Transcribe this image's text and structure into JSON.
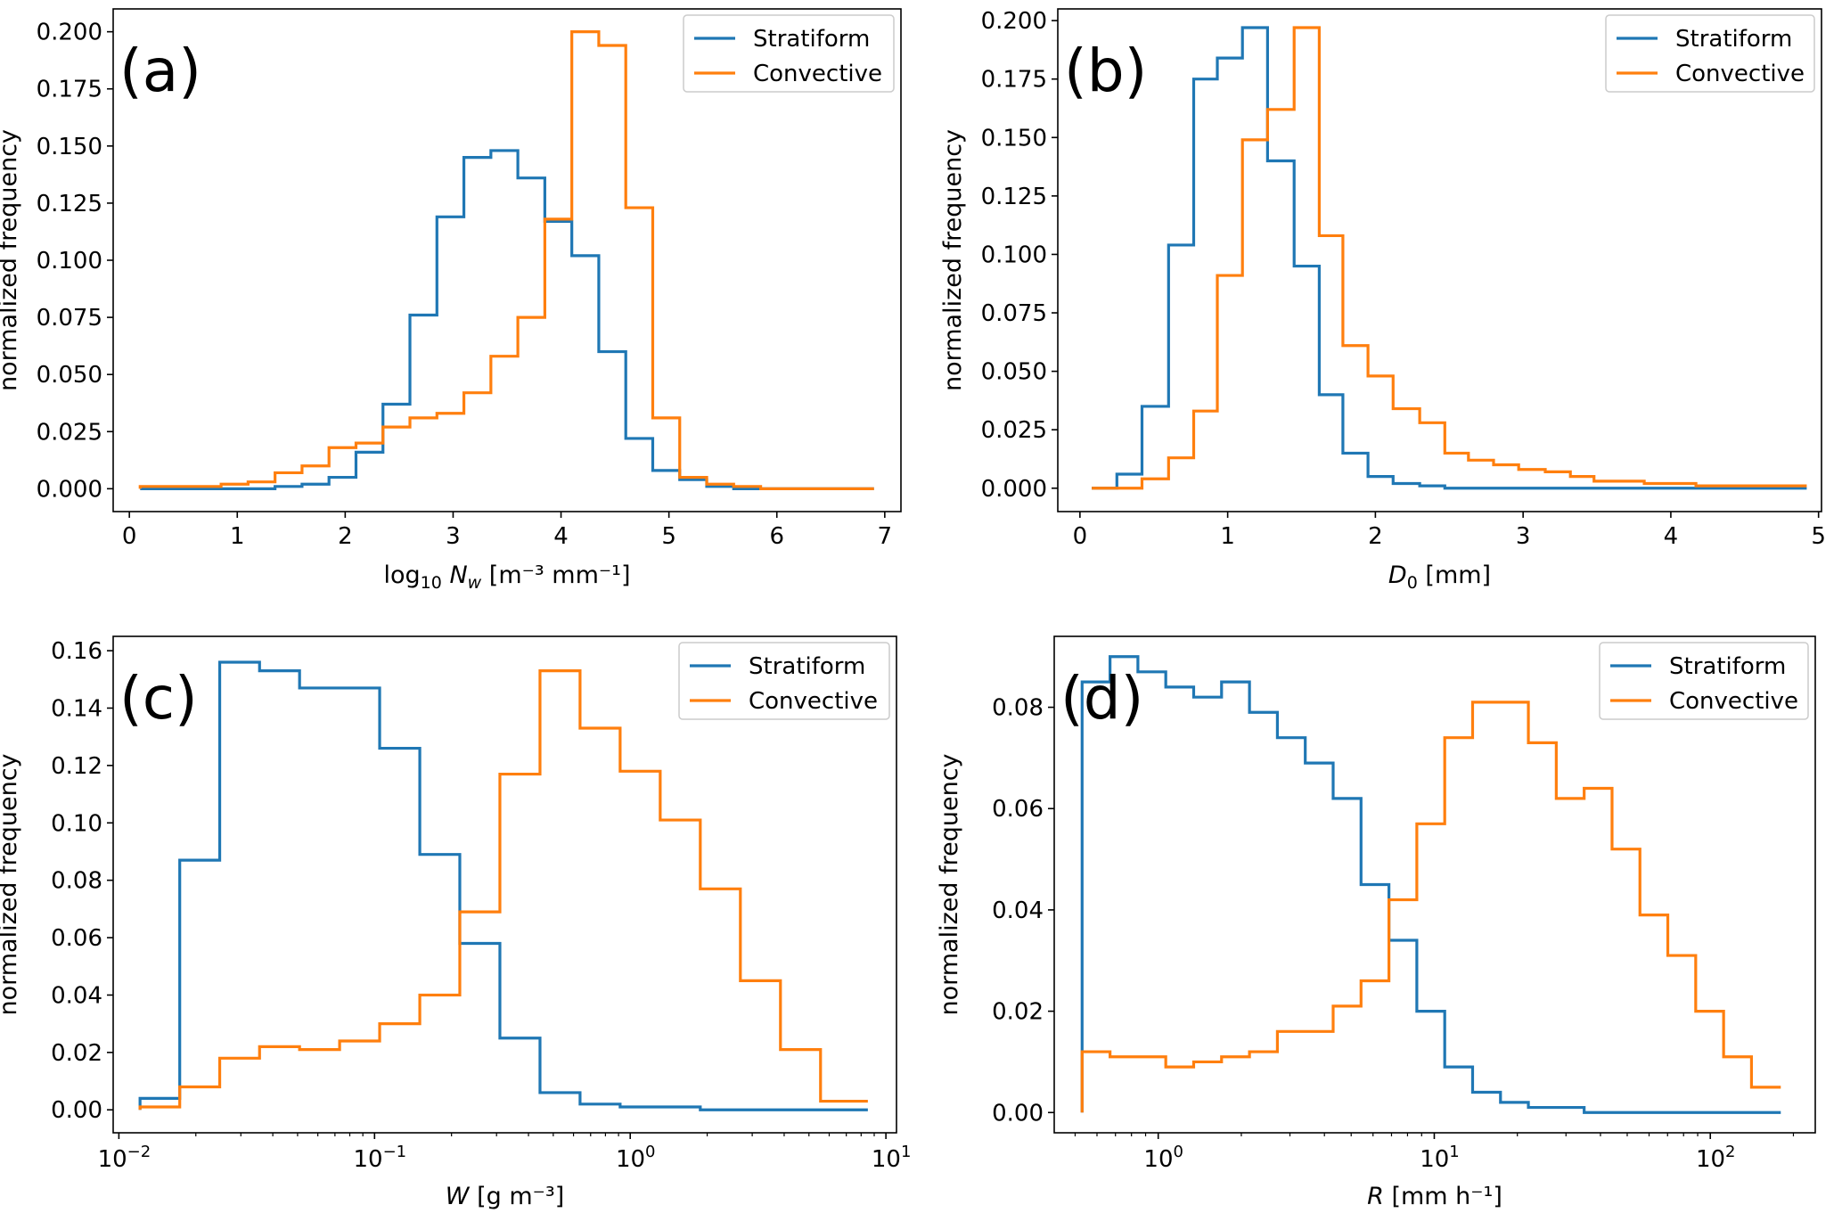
{
  "chart_data": [
    {
      "type": "bar",
      "panel_label": "(a)",
      "ylabel": "normalized frequency",
      "xlabel_prefix": "log",
      "xlabel_sub": "10",
      "xlabel_var": "N",
      "xlabel_var_sub": "w",
      "xlabel_units": "[m⁻³ mm⁻¹]",
      "xscale": "linear",
      "xlim": [
        -0.15,
        7.15
      ],
      "ylim": [
        -0.01,
        0.21
      ],
      "xticks": [
        0,
        1,
        2,
        3,
        4,
        5,
        6,
        7
      ],
      "xtick_labels": [
        "0",
        "1",
        "2",
        "3",
        "4",
        "5",
        "6",
        "7"
      ],
      "yticks": [
        0.0,
        0.025,
        0.05,
        0.075,
        0.1,
        0.125,
        0.15,
        0.175,
        0.2
      ],
      "ytick_labels": [
        "0.000",
        "0.025",
        "0.050",
        "0.075",
        "0.100",
        "0.125",
        "0.150",
        "0.175",
        "0.200"
      ],
      "legend": {
        "placement": "top-right",
        "entries": [
          "Stratiform",
          "Convective"
        ]
      },
      "bin_edges": [
        0.1,
        0.35,
        0.6,
        0.85,
        1.1,
        1.35,
        1.6,
        1.85,
        2.1,
        2.35,
        2.6,
        2.85,
        3.1,
        3.35,
        3.6,
        3.85,
        4.1,
        4.35,
        4.6,
        4.85,
        5.1,
        5.35,
        5.6,
        5.85,
        6.1,
        6.35,
        6.6,
        6.9
      ],
      "series": [
        {
          "name": "Stratiform",
          "color": "#1f77b4",
          "values": [
            0.0,
            0.0,
            0.0,
            0.0,
            0.0,
            0.001,
            0.002,
            0.005,
            0.016,
            0.037,
            0.076,
            0.119,
            0.145,
            0.148,
            0.136,
            0.117,
            0.102,
            0.06,
            0.022,
            0.008,
            0.004,
            0.001,
            0.0,
            0.0,
            0.0,
            0.0,
            0.0
          ]
        },
        {
          "name": "Convective",
          "color": "#ff7f0e",
          "values": [
            0.001,
            0.001,
            0.001,
            0.002,
            0.003,
            0.007,
            0.01,
            0.018,
            0.02,
            0.027,
            0.031,
            0.033,
            0.042,
            0.058,
            0.075,
            0.118,
            0.2,
            0.194,
            0.123,
            0.031,
            0.005,
            0.002,
            0.001,
            0.0,
            0.0,
            0.0,
            0.0
          ]
        }
      ]
    },
    {
      "type": "bar",
      "panel_label": "(b)",
      "ylabel": "normalized frequency",
      "xlabel_var": "D",
      "xlabel_var_sub": "0",
      "xlabel_units": "[mm]",
      "xscale": "linear",
      "xlim": [
        -0.15,
        5.02
      ],
      "ylim": [
        -0.01,
        0.205
      ],
      "xticks": [
        0,
        1,
        2,
        3,
        4,
        5
      ],
      "xtick_labels": [
        "0",
        "1",
        "2",
        "3",
        "4",
        "5"
      ],
      "yticks": [
        0.0,
        0.025,
        0.05,
        0.075,
        0.1,
        0.125,
        0.15,
        0.175,
        0.2
      ],
      "ytick_labels": [
        "0.000",
        "0.025",
        "0.050",
        "0.075",
        "0.100",
        "0.125",
        "0.150",
        "0.175",
        "0.200"
      ],
      "legend": {
        "placement": "top-right",
        "entries": [
          "Stratiform",
          "Convective"
        ]
      },
      "bin_edges": [
        0.08,
        0.25,
        0.42,
        0.6,
        0.77,
        0.93,
        1.1,
        1.27,
        1.45,
        1.62,
        1.78,
        1.95,
        2.12,
        2.3,
        2.47,
        2.63,
        2.8,
        2.97,
        3.15,
        3.32,
        3.48,
        3.65,
        3.82,
        4.0,
        4.17,
        4.33,
        4.5,
        4.67,
        4.92
      ],
      "series": [
        {
          "name": "Stratiform",
          "color": "#1f77b4",
          "values": [
            0.0,
            0.006,
            0.035,
            0.104,
            0.175,
            0.184,
            0.197,
            0.14,
            0.095,
            0.04,
            0.015,
            0.005,
            0.002,
            0.001,
            0.0,
            0.0,
            0.0,
            0.0,
            0.0,
            0.0,
            0.0,
            0.0,
            0.0,
            0.0,
            0.0,
            0.0,
            0.0,
            0.0
          ]
        },
        {
          "name": "Convective",
          "color": "#ff7f0e",
          "values": [
            0.0,
            0.0,
            0.004,
            0.013,
            0.033,
            0.091,
            0.149,
            0.162,
            0.197,
            0.108,
            0.061,
            0.048,
            0.034,
            0.028,
            0.015,
            0.012,
            0.01,
            0.008,
            0.007,
            0.005,
            0.003,
            0.003,
            0.002,
            0.002,
            0.001,
            0.001,
            0.001,
            0.001
          ]
        }
      ]
    },
    {
      "type": "bar",
      "panel_label": "(c)",
      "ylabel": "normalized frequency",
      "xlabel_var": "W",
      "xlabel_units": "[g m⁻³]",
      "xscale": "log",
      "xlim": [
        0.0095,
        11.0
      ],
      "ylim": [
        -0.008,
        0.165
      ],
      "xticks": [
        0.01,
        0.1,
        1,
        10
      ],
      "xtick_base": "10",
      "xtick_exponents": [
        "−2",
        "−1",
        "0",
        "1"
      ],
      "yticks": [
        0.0,
        0.02,
        0.04,
        0.06,
        0.08,
        0.1,
        0.12,
        0.14,
        0.16
      ],
      "ytick_labels": [
        "0.00",
        "0.02",
        "0.04",
        "0.06",
        "0.08",
        "0.10",
        "0.12",
        "0.14",
        "0.16"
      ],
      "legend": {
        "placement": "top-right",
        "entries": [
          "Stratiform",
          "Convective"
        ]
      },
      "bin_edges": [
        0.0121,
        0.0173,
        0.0248,
        0.0355,
        0.0509,
        0.073,
        0.1047,
        0.1503,
        0.2155,
        0.3092,
        0.4437,
        0.6364,
        0.913,
        1.3099,
        1.8793,
        2.6963,
        3.8685,
        5.5501,
        8.5
      ],
      "series": [
        {
          "name": "Stratiform",
          "color": "#1f77b4",
          "values": [
            0.004,
            0.087,
            0.156,
            0.153,
            0.147,
            0.147,
            0.126,
            0.089,
            0.058,
            0.025,
            0.006,
            0.002,
            0.001,
            0.001,
            0.0,
            0.0,
            0.0,
            0.0
          ]
        },
        {
          "name": "Convective",
          "color": "#ff7f0e",
          "values": [
            0.001,
            0.008,
            0.018,
            0.022,
            0.021,
            0.024,
            0.03,
            0.04,
            0.069,
            0.117,
            0.153,
            0.133,
            0.118,
            0.101,
            0.077,
            0.045,
            0.021,
            0.003
          ]
        }
      ]
    },
    {
      "type": "bar",
      "panel_label": "(d)",
      "ylabel": "normalized frequency",
      "xlabel_var": "R",
      "xlabel_units": "[mm h⁻¹]",
      "xscale": "log",
      "xlim": [
        0.42,
        240
      ],
      "ylim": [
        -0.004,
        0.094
      ],
      "xticks": [
        1,
        10,
        100
      ],
      "xtick_base": "10",
      "xtick_exponents": [
        "0",
        "1",
        "2"
      ],
      "yticks": [
        0.0,
        0.02,
        0.04,
        0.06,
        0.08
      ],
      "ytick_labels": [
        "0.00",
        "0.02",
        "0.04",
        "0.06",
        "0.08"
      ],
      "legend": {
        "placement": "top-right",
        "entries": [
          "Stratiform",
          "Convective"
        ]
      },
      "bin_edges": [
        0.53,
        0.669,
        0.844,
        1.065,
        1.344,
        1.696,
        2.141,
        2.702,
        3.409,
        4.302,
        5.429,
        6.852,
        8.646,
        10.911,
        13.768,
        17.374,
        21.925,
        27.667,
        34.914,
        44.058,
        55.597,
        70.159,
        88.534,
        111.724,
        140.984,
        180.0
      ],
      "series": [
        {
          "name": "Stratiform",
          "color": "#1f77b4",
          "values": [
            0.085,
            0.09,
            0.087,
            0.084,
            0.082,
            0.085,
            0.079,
            0.074,
            0.069,
            0.062,
            0.045,
            0.034,
            0.02,
            0.009,
            0.004,
            0.002,
            0.001,
            0.001,
            0.0,
            0.0,
            0.0,
            0.0,
            0.0,
            0.0,
            0.0
          ]
        },
        {
          "name": "Convective",
          "color": "#ff7f0e",
          "values": [
            0.012,
            0.011,
            0.011,
            0.009,
            0.01,
            0.011,
            0.012,
            0.016,
            0.016,
            0.021,
            0.026,
            0.042,
            0.057,
            0.074,
            0.081,
            0.081,
            0.073,
            0.062,
            0.064,
            0.052,
            0.039,
            0.031,
            0.02,
            0.011,
            0.005
          ]
        }
      ]
    }
  ]
}
